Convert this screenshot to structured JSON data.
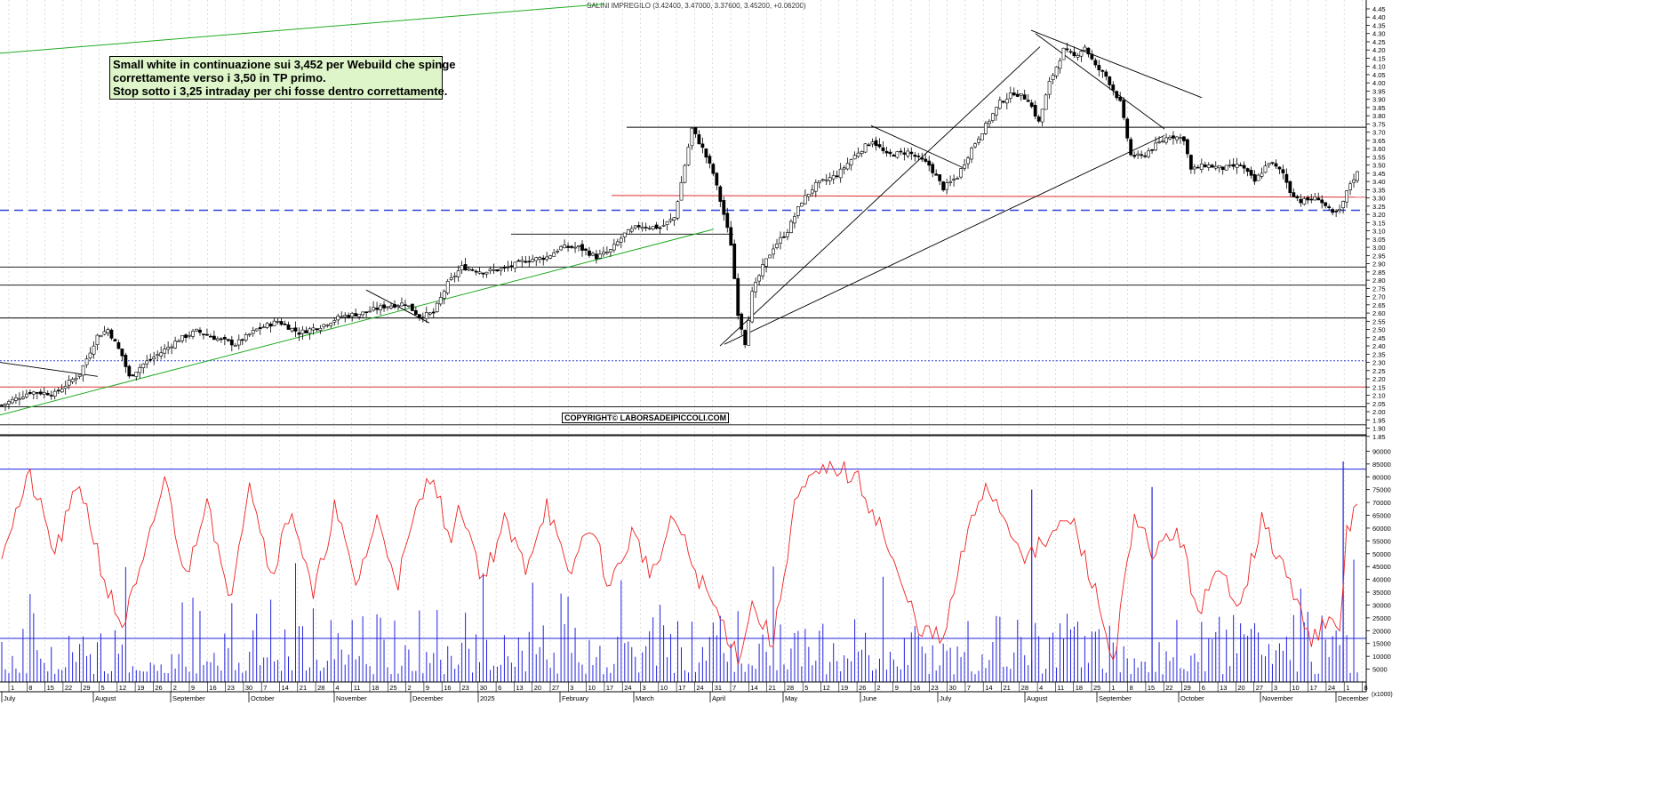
{
  "chart_data": [
    {
      "type": "candlestick",
      "title": "SALINI IMPREGILO",
      "header_values": "(3.42400, 3.47000, 3.37600, 3.45200, +0.06200)",
      "ylim": [
        1.8,
        4.45
      ],
      "y_ticks": [
        "4.45",
        "4.40",
        "4.35",
        "4.30",
        "4.25",
        "4.20",
        "4.15",
        "4.10",
        "4.05",
        "4.00",
        "3.95",
        "3.90",
        "3.85",
        "3.80",
        "3.75",
        "3.70",
        "3.65",
        "3.60",
        "3.55",
        "3.50",
        "3.45",
        "3.40",
        "3.35",
        "3.30",
        "3.25",
        "3.20",
        "3.15",
        "3.10",
        "3.05",
        "3.00",
        "2.95",
        "2.90",
        "2.85",
        "2.80",
        "2.75",
        "2.70",
        "2.65",
        "2.60",
        "2.55",
        "2.50",
        "2.45",
        "2.40",
        "2.35",
        "2.30",
        "2.25",
        "2.20",
        "2.15",
        "2.10",
        "2.05",
        "2.00",
        "1.95",
        "1.90",
        "1.85"
      ],
      "price_anchors": [
        [
          0,
          2.04
        ],
        [
          8,
          2.12
        ],
        [
          15,
          2.11
        ],
        [
          22,
          2.23
        ],
        [
          27,
          2.46
        ],
        [
          30,
          2.5
        ],
        [
          34,
          2.34
        ],
        [
          36,
          2.21
        ],
        [
          40,
          2.29
        ],
        [
          45,
          2.36
        ],
        [
          50,
          2.44
        ],
        [
          55,
          2.49
        ],
        [
          60,
          2.45
        ],
        [
          66,
          2.41
        ],
        [
          72,
          2.5
        ],
        [
          78,
          2.55
        ],
        [
          84,
          2.48
        ],
        [
          90,
          2.52
        ],
        [
          96,
          2.58
        ],
        [
          102,
          2.6
        ],
        [
          108,
          2.64
        ],
        [
          114,
          2.66
        ],
        [
          118,
          2.58
        ],
        [
          122,
          2.6
        ],
        [
          126,
          2.78
        ],
        [
          130,
          2.88
        ],
        [
          136,
          2.85
        ],
        [
          142,
          2.87
        ],
        [
          148,
          2.92
        ],
        [
          154,
          2.94
        ],
        [
          158,
          3.0
        ],
        [
          163,
          3.0
        ],
        [
          168,
          2.94
        ],
        [
          172,
          2.98
        ],
        [
          176,
          3.08
        ],
        [
          180,
          3.13
        ],
        [
          186,
          3.12
        ],
        [
          190,
          3.18
        ],
        [
          193,
          3.5
        ],
        [
          195,
          3.72
        ],
        [
          198,
          3.6
        ],
        [
          201,
          3.45
        ],
        [
          204,
          3.2
        ],
        [
          206,
          3.02
        ],
        [
          208,
          2.6
        ],
        [
          210,
          2.42
        ],
        [
          212,
          2.72
        ],
        [
          215,
          2.88
        ],
        [
          218,
          3.0
        ],
        [
          222,
          3.1
        ],
        [
          226,
          3.28
        ],
        [
          230,
          3.38
        ],
        [
          236,
          3.44
        ],
        [
          242,
          3.58
        ],
        [
          246,
          3.65
        ],
        [
          250,
          3.56
        ],
        [
          256,
          3.58
        ],
        [
          262,
          3.5
        ],
        [
          266,
          3.36
        ],
        [
          270,
          3.43
        ],
        [
          274,
          3.6
        ],
        [
          278,
          3.74
        ],
        [
          282,
          3.88
        ],
        [
          286,
          3.94
        ],
        [
          290,
          3.9
        ],
        [
          293,
          3.76
        ],
        [
          296,
          4.0
        ],
        [
          300,
          4.2
        ],
        [
          303,
          4.16
        ],
        [
          306,
          4.22
        ],
        [
          309,
          4.1
        ],
        [
          312,
          4.04
        ],
        [
          316,
          3.88
        ],
        [
          319,
          3.56
        ],
        [
          322,
          3.55
        ],
        [
          326,
          3.62
        ],
        [
          330,
          3.68
        ],
        [
          334,
          3.66
        ],
        [
          336,
          3.47
        ],
        [
          340,
          3.5
        ],
        [
          345,
          3.48
        ],
        [
          350,
          3.5
        ],
        [
          354,
          3.4
        ],
        [
          358,
          3.52
        ],
        [
          362,
          3.45
        ],
        [
          364,
          3.34
        ],
        [
          367,
          3.28
        ],
        [
          372,
          3.3
        ],
        [
          376,
          3.2
        ],
        [
          378,
          3.22
        ],
        [
          381,
          3.39
        ],
        [
          383,
          3.452
        ]
      ],
      "volume_anchors": [
        [
          0,
          52
        ],
        [
          8,
          80
        ],
        [
          15,
          50
        ],
        [
          22,
          78
        ],
        [
          30,
          35
        ],
        [
          34,
          22
        ],
        [
          40,
          45
        ],
        [
          46,
          80
        ],
        [
          52,
          40
        ],
        [
          58,
          74
        ],
        [
          64,
          30
        ],
        [
          70,
          80
        ],
        [
          76,
          42
        ],
        [
          82,
          68
        ],
        [
          88,
          32
        ],
        [
          94,
          68
        ],
        [
          100,
          38
        ],
        [
          106,
          63
        ],
        [
          112,
          40
        ],
        [
          118,
          70
        ],
        [
          122,
          83
        ],
        [
          126,
          55
        ],
        [
          130,
          68
        ],
        [
          136,
          40
        ],
        [
          142,
          62
        ],
        [
          148,
          45
        ],
        [
          154,
          70
        ],
        [
          160,
          40
        ],
        [
          166,
          62
        ],
        [
          172,
          37
        ],
        [
          178,
          58
        ],
        [
          184,
          42
        ],
        [
          190,
          64
        ],
        [
          196,
          43
        ],
        [
          204,
          22
        ],
        [
          208,
          10
        ],
        [
          212,
          30
        ],
        [
          218,
          15
        ],
        [
          224,
          70
        ],
        [
          230,
          80
        ],
        [
          236,
          84
        ],
        [
          242,
          78
        ],
        [
          248,
          62
        ],
        [
          254,
          37
        ],
        [
          260,
          20
        ],
        [
          266,
          16
        ],
        [
          272,
          53
        ],
        [
          278,
          78
        ],
        [
          284,
          62
        ],
        [
          290,
          48
        ],
        [
          296,
          56
        ],
        [
          302,
          64
        ],
        [
          308,
          40
        ],
        [
          314,
          8
        ],
        [
          320,
          62
        ],
        [
          326,
          50
        ],
        [
          332,
          60
        ],
        [
          338,
          28
        ],
        [
          344,
          42
        ],
        [
          350,
          32
        ],
        [
          356,
          62
        ],
        [
          362,
          45
        ],
        [
          366,
          30
        ],
        [
          370,
          18
        ],
        [
          374,
          22
        ],
        [
          378,
          20
        ],
        [
          380,
          58
        ],
        [
          383,
          70
        ]
      ],
      "x_axis": {
        "top_row": [
          "1",
          "8",
          "15",
          "22",
          "29",
          "5",
          "12",
          "19",
          "26",
          "2",
          "9",
          "16",
          "23",
          "30",
          "7",
          "14",
          "21",
          "28",
          "4",
          "11",
          "18",
          "25",
          "2",
          "9",
          "16",
          "23",
          "30",
          "6",
          "13",
          "20",
          "27",
          "3",
          "10",
          "17",
          "24",
          "3",
          "10",
          "17",
          "24",
          "31",
          "7",
          "14",
          "21",
          "28",
          "5",
          "12",
          "19",
          "26",
          "2",
          "9",
          "16",
          "23",
          "30",
          "7",
          "14",
          "21",
          "28",
          "4",
          "11",
          "18",
          "25",
          "1",
          "8",
          "15",
          "22",
          "29",
          "6",
          "13",
          "20",
          "27",
          "3",
          "10",
          "17",
          "24",
          "1",
          "8"
        ],
        "month_labels": [
          "July",
          "August",
          "September",
          "October",
          "November",
          "December",
          "2025",
          "February",
          "March",
          "April",
          "May",
          "June",
          "July",
          "August",
          "September",
          "October",
          "November",
          "December"
        ]
      }
    }
  ],
  "annotation_lines": [
    "Small white in continuazione sui 3,452 per Webuild che spinge",
    "correttamente verso i 3,50 in TP primo.",
    "Stop sotto i 3,25 intraday per chi fosse dentro correttamente."
  ],
  "copyright": "COPYRIGHT© LABORSADEIPICCOLI.COM",
  "volume_axis": {
    "ticks": [
      "90000",
      "85000",
      "80000",
      "75000",
      "70000",
      "65000",
      "60000",
      "55000",
      "50000",
      "45000",
      "40000",
      "35000",
      "30000",
      "25000",
      "20000",
      "15000",
      "10000",
      "5000"
    ],
    "unit": "(x1000)"
  },
  "colors": {
    "support_red": "#e03030",
    "dashed_blue": "#3344dd",
    "trend_green": "#22aa22",
    "volume_blue": "#2222dd",
    "volume_avg_red": "#ee2222",
    "grid": "#c8c8c8"
  }
}
